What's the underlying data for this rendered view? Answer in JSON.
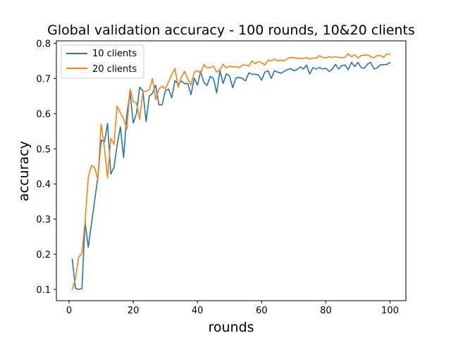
{
  "chart_data": {
    "type": "line",
    "title": "Global validation accuracy - 100 rounds, 10&20 clients",
    "xlabel": "rounds",
    "ylabel": "accuracy",
    "xlim": [
      -3.95,
      104.95
    ],
    "ylim": [
      0.068,
      0.807
    ],
    "xticks": [
      0,
      20,
      40,
      60,
      80,
      100
    ],
    "yticks": [
      0.1,
      0.2,
      0.3,
      0.4,
      0.5,
      0.6,
      0.7,
      0.8
    ],
    "legend_position": "top-left",
    "series": [
      {
        "name": "10 clients",
        "color": "#1f77b4",
        "values": [
          0.186,
          0.103,
          0.1,
          0.102,
          0.291,
          0.22,
          0.288,
          0.355,
          0.42,
          0.525,
          0.519,
          0.572,
          0.428,
          0.447,
          0.512,
          0.562,
          0.475,
          0.598,
          0.66,
          0.573,
          0.6,
          0.675,
          0.665,
          0.577,
          0.65,
          0.658,
          0.681,
          0.625,
          0.625,
          0.665,
          0.67,
          0.645,
          0.694,
          0.684,
          0.693,
          0.685,
          0.686,
          0.654,
          0.701,
          0.681,
          0.72,
          0.689,
          0.68,
          0.706,
          0.7,
          0.659,
          0.722,
          0.686,
          0.713,
          0.707,
          0.674,
          0.701,
          0.703,
          0.7,
          0.693,
          0.716,
          0.712,
          0.712,
          0.71,
          0.695,
          0.718,
          0.722,
          0.7,
          0.722,
          0.718,
          0.715,
          0.72,
          0.725,
          0.728,
          0.722,
          0.725,
          0.733,
          0.727,
          0.738,
          0.713,
          0.731,
          0.727,
          0.731,
          0.727,
          0.729,
          0.72,
          0.726,
          0.74,
          0.727,
          0.737,
          0.738,
          0.725,
          0.746,
          0.734,
          0.746,
          0.731,
          0.729,
          0.741,
          0.746,
          0.727,
          0.73,
          0.739,
          0.739,
          0.74,
          0.745
        ]
      },
      {
        "name": "20 clients",
        "color": "#ff7f0e",
        "values": [
          0.1,
          0.13,
          0.192,
          0.202,
          0.292,
          0.42,
          0.453,
          0.446,
          0.411,
          0.57,
          0.505,
          0.417,
          0.53,
          0.512,
          0.622,
          0.602,
          0.586,
          0.555,
          0.67,
          0.634,
          0.63,
          0.584,
          0.662,
          0.664,
          0.668,
          0.7,
          0.64,
          0.67,
          0.678,
          0.67,
          0.69,
          0.711,
          0.729,
          0.675,
          0.704,
          0.72,
          0.698,
          0.681,
          0.718,
          0.722,
          0.715,
          0.74,
          0.73,
          0.731,
          0.735,
          0.718,
          0.725,
          0.74,
          0.73,
          0.735,
          0.733,
          0.733,
          0.731,
          0.738,
          0.738,
          0.735,
          0.75,
          0.742,
          0.748,
          0.745,
          0.738,
          0.752,
          0.75,
          0.755,
          0.75,
          0.752,
          0.75,
          0.756,
          0.76,
          0.759,
          0.758,
          0.757,
          0.757,
          0.76,
          0.755,
          0.758,
          0.758,
          0.765,
          0.76,
          0.758,
          0.762,
          0.76,
          0.762,
          0.76,
          0.759,
          0.76,
          0.77,
          0.762,
          0.767,
          0.758,
          0.765,
          0.766,
          0.767,
          0.762,
          0.759,
          0.765,
          0.765,
          0.76,
          0.77,
          0.768
        ]
      }
    ]
  }
}
